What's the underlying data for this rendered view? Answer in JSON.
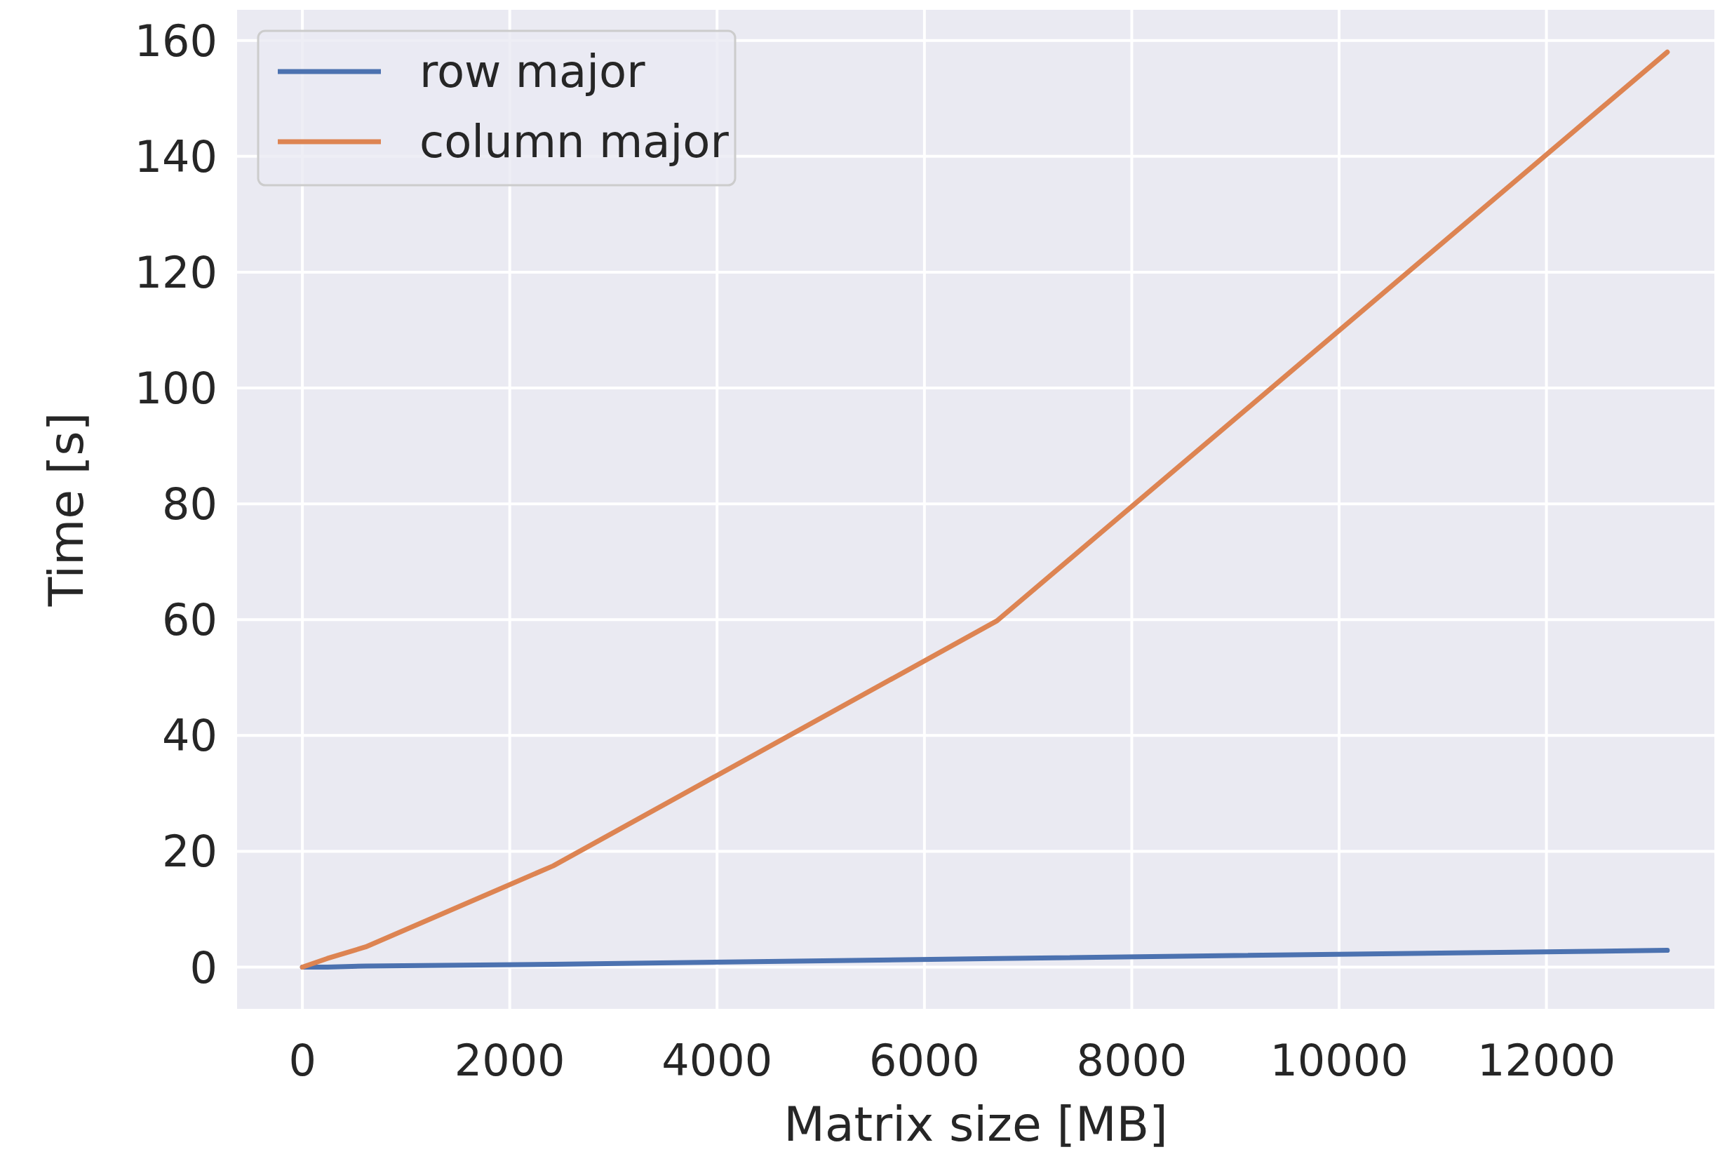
{
  "chart_data": {
    "type": "line",
    "xlabel": "Matrix size [MB]",
    "ylabel": "Time [s]",
    "x": [
      0,
      240,
      610,
      2420,
      6700,
      13166
    ],
    "series": [
      {
        "name": "row major",
        "color": "#4c72b0",
        "values": [
          0,
          0,
          0.2,
          0.5,
          1.5,
          2.9
        ]
      },
      {
        "name": "column major",
        "color": "#dd8452",
        "values": [
          0,
          1.5,
          3.5,
          17.5,
          59.8,
          158
        ]
      }
    ],
    "xlim": [
      -630,
      13620
    ],
    "ylim": [
      -7.2,
      165.3
    ],
    "xticks": [
      0,
      2000,
      4000,
      6000,
      8000,
      10000,
      12000
    ],
    "yticks": [
      0,
      20,
      40,
      60,
      80,
      100,
      120,
      140,
      160
    ],
    "grid": true,
    "legend": "top left",
    "marker": "none",
    "line_style": "solid"
  }
}
